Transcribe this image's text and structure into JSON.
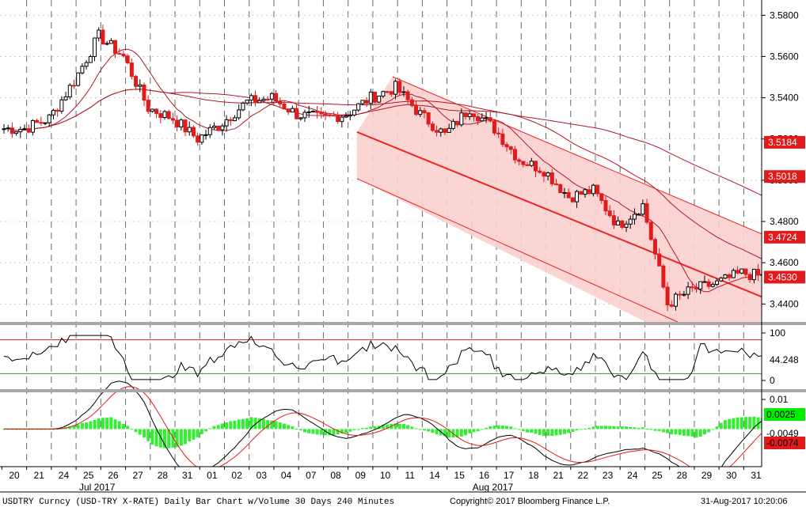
{
  "chart_data": [
    {
      "type": "candlestick",
      "panel": "price",
      "yticks": [
        3.58,
        3.56,
        3.54,
        3.52,
        3.5,
        3.48,
        3.46,
        3.44
      ],
      "ytick_labels": [
        "3.5800",
        "3.5600",
        "3.5400",
        "3.5200",
        "3.5000",
        "3.4800",
        "3.4600",
        "3.4400"
      ],
      "ylim": [
        3.4313,
        3.5874
      ],
      "x_tick_labels": [
        "20",
        "21",
        "24",
        "25",
        "26",
        "27",
        "28",
        "31",
        "01",
        "02",
        "03",
        "04",
        "07",
        "08",
        "09",
        "10",
        "11",
        "14",
        "15",
        "16",
        "17",
        "18",
        "21",
        "22",
        "23",
        "24",
        "25",
        "28",
        "29",
        "30",
        "31"
      ],
      "month_labels": [
        {
          "text": "Jul 2017",
          "day_index": 3
        },
        {
          "text": "Aug 2017",
          "day_index": 19
        }
      ],
      "daily_close": [
        3.525,
        3.53,
        3.548,
        3.57,
        3.56,
        3.535,
        3.53,
        3.52,
        3.528,
        3.538,
        3.54,
        3.532,
        3.53,
        3.532,
        3.54,
        3.545,
        3.532,
        3.522,
        3.535,
        3.525,
        3.51,
        3.505,
        3.492,
        3.495,
        3.478,
        3.488,
        3.44,
        3.447,
        3.45,
        3.455,
        3.453
      ],
      "last_price_label": "3.4530",
      "last_price": 3.453,
      "moving_average_labels": [
        {
          "text": "3.5184",
          "value": 3.5184
        },
        {
          "text": "3.5018",
          "value": 3.5018
        },
        {
          "text": "3.4724",
          "value": 3.4724
        }
      ],
      "channel": {
        "upper_start": 3.5502,
        "upper_end": 3.4705,
        "lower_start": 3.5214,
        "lower_end": 3.4402,
        "start_day_index": 15.3,
        "end_day_index": 30.9
      },
      "colors": {
        "up": "#000000",
        "down": "#e31a1c",
        "ma": "#b2182b",
        "channel_fill": "#fbcfcf",
        "channel_line": "#ee2222",
        "badge": "#e31a1c"
      }
    },
    {
      "type": "line",
      "panel": "rsi",
      "yticks": [
        100,
        0
      ],
      "ytick_labels": [
        "100",
        "0"
      ],
      "ylim": [
        0,
        100
      ],
      "upper_band": 70,
      "lower_band": 30,
      "last_value_label": "44.248",
      "last_value": 44.248,
      "colors": {
        "line": "#000000",
        "upper": "#e31a1c",
        "lower": "#2ca02c",
        "badge": "#000000"
      }
    },
    {
      "type": "histogram",
      "panel": "macd",
      "ytick_labels": [
        "0.01"
      ],
      "ylim": [
        -0.012,
        0.0125
      ],
      "value_labels": [
        {
          "text": "0.0025",
          "value": 0.0025,
          "color": "#00ee00"
        },
        {
          "text": "-0.0049",
          "value": -0.0049,
          "color": "#ffffff"
        },
        {
          "text": "-0.0074",
          "value": -0.0074,
          "color": "#e31a1c"
        }
      ],
      "colors": {
        "hist": "#33ee33",
        "macd": "#000000",
        "signal": "#e31a1c",
        "fill": "#f4a6a6"
      }
    }
  ],
  "footer": {
    "left": "USDTRY Curncy (USD-TRY X-RATE)  Daily Bar Chart w/Volume 30 Days 240 Minutes",
    "center": "Copyright© 2017 Bloomberg Finance L.P.",
    "right": "31-Aug-2017 10:20:06"
  }
}
